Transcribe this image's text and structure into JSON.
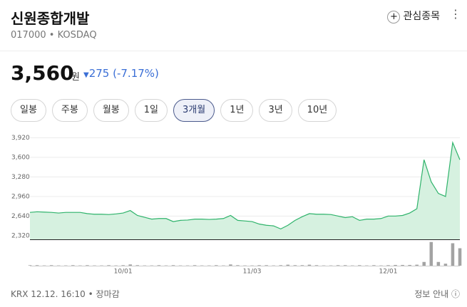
{
  "header": {
    "title": "신원종합개발",
    "code": "017000",
    "market": "KOSDAQ",
    "watch": "관심종목"
  },
  "price": {
    "value": "3,560",
    "unit": "원",
    "change": "275",
    "change_pct": "(-7.17%)"
  },
  "periods": {
    "items": [
      "일봉",
      "주봉",
      "월봉",
      "1일",
      "3개월",
      "1년",
      "3년",
      "10년"
    ],
    "selected": 4
  },
  "chart_data": {
    "type": "line",
    "categories": [
      null,
      null,
      null,
      null,
      null,
      null,
      null,
      null,
      null,
      null,
      null,
      null,
      null,
      "10/01",
      null,
      null,
      null,
      null,
      null,
      null,
      null,
      null,
      null,
      null,
      null,
      null,
      null,
      null,
      null,
      null,
      null,
      "11/03",
      null,
      null,
      null,
      null,
      null,
      null,
      null,
      null,
      null,
      null,
      null,
      null,
      null,
      null,
      null,
      null,
      null,
      null,
      "12/01",
      null,
      null,
      null,
      null,
      null,
      null,
      null,
      null,
      null,
      null
    ],
    "series": [
      {
        "color": "#2fb36b",
        "fill": "#d6f1e0",
        "values": [
          2700,
          2710,
          2705,
          2700,
          2690,
          2700,
          2700,
          2700,
          2680,
          2670,
          2670,
          2665,
          2675,
          2690,
          2730,
          2650,
          2620,
          2590,
          2600,
          2600,
          2550,
          2570,
          2575,
          2590,
          2590,
          2585,
          2590,
          2600,
          2650,
          2570,
          2560,
          2550,
          2510,
          2490,
          2480,
          2430,
          2490,
          2570,
          2630,
          2680,
          2670,
          2670,
          2665,
          2640,
          2615,
          2630,
          2570,
          2590,
          2590,
          2600,
          2640,
          2640,
          2650,
          2690,
          2760,
          3560,
          3200,
          3010,
          2960,
          3840,
          3560
        ]
      }
    ],
    "volume": {
      "color": "#a3a3a3",
      "lim": [
        0,
        100
      ],
      "values": [
        2,
        2,
        1,
        2,
        1,
        1,
        2,
        1,
        2,
        1,
        1,
        2,
        1,
        2,
        5,
        2,
        1,
        1,
        2,
        1,
        2,
        1,
        1,
        2,
        1,
        1,
        2,
        1,
        5,
        2,
        1,
        1,
        2,
        2,
        1,
        2,
        4,
        2,
        2,
        4,
        2,
        1,
        1,
        2,
        2,
        1,
        2,
        1,
        2,
        1,
        2,
        3,
        3,
        3,
        4,
        15,
        95,
        15,
        8,
        90,
        70
      ]
    },
    "ylim": [
      2260,
      4040
    ],
    "yticks": [
      {
        "value": 2320,
        "label": "2,320"
      },
      {
        "value": 2640,
        "label": "2,640"
      },
      {
        "value": 2960,
        "label": "2,960"
      },
      {
        "value": 3280,
        "label": "3,280"
      },
      {
        "value": 3600,
        "label": "3,600"
      },
      {
        "value": 3920,
        "label": "3,920"
      }
    ],
    "grid": true
  },
  "footer": {
    "time": "KRX 12.12. 16:10",
    "status": "장마감",
    "info": "정보 안내"
  }
}
